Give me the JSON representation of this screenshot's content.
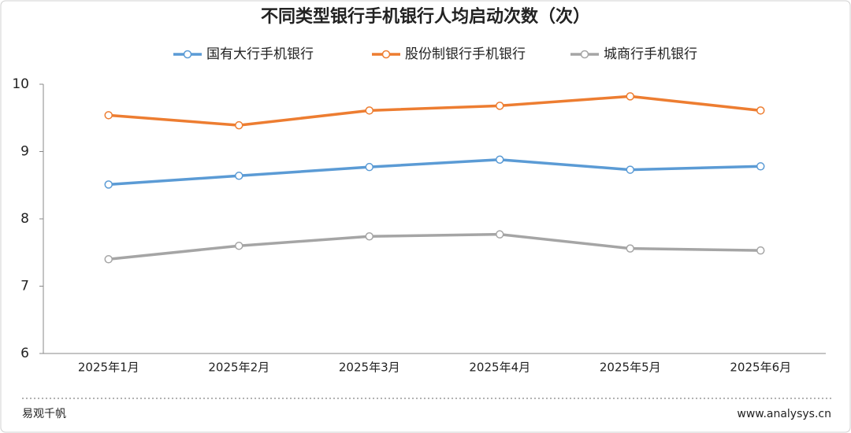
{
  "chart_data": {
    "type": "line",
    "title": "不同类型银行手机银行人均启动次数（次）",
    "categories": [
      "2025年1月",
      "2025年2月",
      "2025年3月",
      "2025年4月",
      "2025年5月",
      "2025年6月"
    ],
    "series": [
      {
        "name": "国有大行手机银行",
        "color": "#5b9bd5",
        "values": [
          8.51,
          8.64,
          8.77,
          8.88,
          8.73,
          8.78
        ]
      },
      {
        "name": "股份制银行手机银行",
        "color": "#ed7d31",
        "values": [
          9.54,
          9.39,
          9.61,
          9.68,
          9.82,
          9.61
        ]
      },
      {
        "name": "城商行手机银行",
        "color": "#a5a5a5",
        "values": [
          7.4,
          7.6,
          7.74,
          7.77,
          7.56,
          7.53
        ]
      }
    ],
    "ylim": [
      6,
      10
    ],
    "yticks": [
      6,
      7,
      8,
      9,
      10
    ],
    "grid": false,
    "legend": "top"
  },
  "footer": {
    "source": "易观千帆",
    "url": "www.analysys.cn"
  }
}
